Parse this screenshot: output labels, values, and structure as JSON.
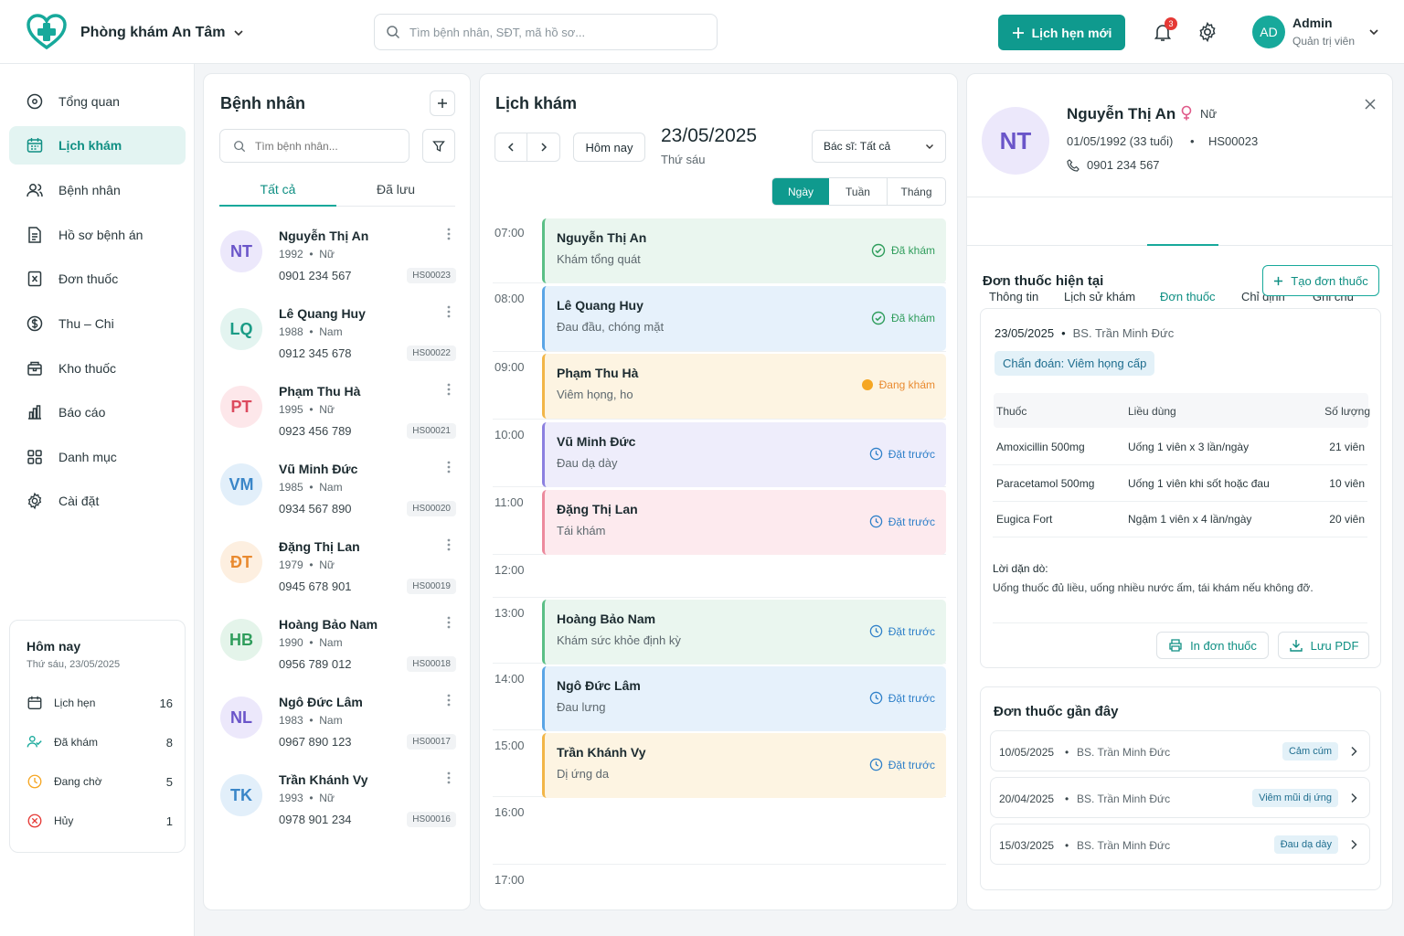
{
  "header": {
    "clinic_name": "Phòng khám An Tâm",
    "search_placeholder": "Tìm bệnh nhân, SĐT, mã hồ sơ...",
    "new_appointment": "Lịch hẹn mới",
    "notification_count": "3",
    "user_initials": "AD",
    "user_name": "Admin",
    "user_role": "Quản trị viên"
  },
  "sidebar": {
    "items": [
      {
        "label": "Tổng quan",
        "icon": "dashboard-icon"
      },
      {
        "label": "Lịch khám",
        "icon": "calendar-icon"
      },
      {
        "label": "Bệnh nhân",
        "icon": "users-icon"
      },
      {
        "label": "Hồ sơ bệnh án",
        "icon": "file-icon"
      },
      {
        "label": "Đơn thuốc",
        "icon": "prescription-icon"
      },
      {
        "label": "Thu – Chi",
        "icon": "dollar-icon"
      },
      {
        "label": "Kho thuốc",
        "icon": "box-icon"
      },
      {
        "label": "Báo cáo",
        "icon": "bar-chart-icon"
      },
      {
        "label": "Danh mục",
        "icon": "grid-icon"
      },
      {
        "label": "Cài đặt",
        "icon": "gear-icon"
      }
    ],
    "today": {
      "title": "Hôm nay",
      "date": "Thứ sáu, 23/05/2025",
      "stats": [
        {
          "label": "Lịch hẹn",
          "value": "16",
          "color": "#2a383d"
        },
        {
          "label": "Đã khám",
          "value": "8",
          "color": "#17a99b"
        },
        {
          "label": "Đang chờ",
          "value": "5",
          "color": "#f5a623"
        },
        {
          "label": "Hủy",
          "value": "1",
          "color": "#e53935"
        }
      ]
    }
  },
  "patients": {
    "title": "Bệnh nhân",
    "search_placeholder": "Tìm bệnh nhân...",
    "tabs": [
      "Tất cả",
      "Đã lưu"
    ],
    "list": [
      {
        "initials": "NT",
        "name": "Nguyễn Thị An",
        "year": "1992",
        "gender": "Nữ",
        "phone": "0901 234 567",
        "code": "HS00023",
        "bg": "#ece8fb",
        "fg": "#6a55c9"
      },
      {
        "initials": "LQ",
        "name": "Lê Quang Huy",
        "year": "1988",
        "gender": "Nam",
        "phone": "0912 345 678",
        "code": "HS00022",
        "bg": "#e3f4f0",
        "fg": "#1a9c86"
      },
      {
        "initials": "PT",
        "name": "Phạm Thu Hà",
        "year": "1995",
        "gender": "Nữ",
        "phone": "0923 456 789",
        "code": "HS00021",
        "bg": "#fde7ea",
        "fg": "#dc4a5e"
      },
      {
        "initials": "VM",
        "name": "Vũ Minh Đức",
        "year": "1985",
        "gender": "Nam",
        "phone": "0934 567 890",
        "code": "HS00020",
        "bg": "#e2effa",
        "fg": "#3a86c8"
      },
      {
        "initials": "ĐT",
        "name": "Đặng Thị Lan",
        "year": "1979",
        "gender": "Nữ",
        "phone": "0945 678 901",
        "code": "HS00019",
        "bg": "#fdefe0",
        "fg": "#e98a2f"
      },
      {
        "initials": "HB",
        "name": "Hoàng Bảo Nam",
        "year": "1990",
        "gender": "Nam",
        "phone": "0956 789 012",
        "code": "HS00018",
        "bg": "#e4f4ea",
        "fg": "#2f9d5c"
      },
      {
        "initials": "NL",
        "name": "Ngô Đức Lâm",
        "year": "1983",
        "gender": "Nam",
        "phone": "0967 890 123",
        "code": "HS00017",
        "bg": "#ece8fb",
        "fg": "#6a55c9"
      },
      {
        "initials": "TK",
        "name": "Trần Khánh Vy",
        "year": "1993",
        "gender": "Nữ",
        "phone": "0978 901 234",
        "code": "HS00016",
        "bg": "#e2effa",
        "fg": "#3a86c8"
      }
    ]
  },
  "schedule": {
    "title": "Lịch khám",
    "today_btn": "Hôm nay",
    "date": "23/05/2025",
    "weekday": "Thứ sáu",
    "doctor_filter": "Bác sĩ: Tất cả",
    "views": [
      "Ngày",
      "Tuần",
      "Tháng"
    ],
    "hours": [
      "07:00",
      "08:00",
      "09:00",
      "10:00",
      "11:00",
      "12:00",
      "13:00",
      "14:00",
      "15:00",
      "16:00",
      "17:00"
    ],
    "appointments": [
      {
        "name": "Nguyễn Thị An",
        "desc": "Khám tổng quát",
        "status": "Đã khám",
        "kind": "done",
        "bg": "#eaf6ef",
        "border": "#5bbf86",
        "color": "#2f9d5c"
      },
      {
        "name": "Lê Quang Huy",
        "desc": "Đau đầu, chóng mặt",
        "status": "Đã khám",
        "kind": "done",
        "bg": "#e6f1fb",
        "border": "#5aa5e6",
        "color": "#2f9d5c"
      },
      {
        "name": "Phạm Thu Hà",
        "desc": "Viêm họng, ho",
        "status": "Đang khám",
        "kind": "progress",
        "bg": "#fdf4e2",
        "border": "#f2b648",
        "color": "#e98a2f"
      },
      {
        "name": "Vũ Minh Đức",
        "desc": "Đau dạ dày",
        "status": "Đặt trước",
        "kind": "booked",
        "bg": "#eeedfb",
        "border": "#8c80e0",
        "color": "#2f80c9"
      },
      {
        "name": "Đặng Thị Lan",
        "desc": "Tái khám",
        "status": "Đặt trước",
        "kind": "booked",
        "bg": "#fdeaee",
        "border": "#ec8a9d",
        "color": "#2f80c9"
      },
      {
        "name": "Hoàng Bảo Nam",
        "desc": "Khám sức khỏe định kỳ",
        "status": "Đặt trước",
        "kind": "booked",
        "bg": "#eaf6ef",
        "border": "#5bbf86",
        "color": "#2f80c9"
      },
      {
        "name": "Ngô Đức Lâm",
        "desc": "Đau lưng",
        "status": "Đặt trước",
        "kind": "booked",
        "bg": "#e6f1fb",
        "border": "#5aa5e6",
        "color": "#2f80c9"
      },
      {
        "name": "Trần Khánh Vy",
        "desc": "Dị ứng da",
        "status": "Đặt trước",
        "kind": "booked",
        "bg": "#fdf4e2",
        "border": "#f2b648",
        "color": "#2f80c9"
      }
    ]
  },
  "detail": {
    "initials": "NT",
    "name": "Nguyễn Thị An",
    "gender": "Nữ",
    "dob": "01/05/1992 (33 tuổi)",
    "code": "HS00023",
    "phone": "0901 234 567",
    "tabs": [
      "Thông tin",
      "Lịch sử khám",
      "Đơn thuốc",
      "Chỉ định",
      "Ghi chú"
    ],
    "section_title": "Đơn thuốc hiện tại",
    "create_btn": "Tạo đơn thuốc",
    "rx_date": "23/05/2025",
    "rx_doctor": "BS. Trần Minh Đức",
    "diagnosis": "Chẩn đoán: Viêm họng cấp",
    "columns": [
      "Thuốc",
      "Liều dùng",
      "Số lượng"
    ],
    "meds": [
      {
        "name": "Amoxicillin 500mg",
        "dose": "Uống 1 viên x 3 lần/ngày",
        "qty": "21 viên"
      },
      {
        "name": "Paracetamol 500mg",
        "dose": "Uống 1 viên khi sốt hoặc đau",
        "qty": "10 viên"
      },
      {
        "name": "Eugica Fort",
        "dose": "Ngậm 1 viên x 4 lần/ngày",
        "qty": "20 viên"
      }
    ],
    "advice_label": "Lời dặn dò:",
    "advice": "Uống thuốc đủ liều, uống nhiều nước ấm, tái khám nếu không đỡ.",
    "print_btn": "In đơn thuốc",
    "pdf_btn": "Lưu PDF",
    "recent_title": "Đơn thuốc gần đây",
    "recent": [
      {
        "date": "10/05/2025",
        "doctor": "BS. Trần Minh Đức",
        "tag": "Cảm cúm"
      },
      {
        "date": "20/04/2025",
        "doctor": "BS. Trần Minh Đức",
        "tag": "Viêm mũi dị ứng"
      },
      {
        "date": "15/03/2025",
        "doctor": "BS. Trần Minh Đức",
        "tag": "Đau dạ dày"
      }
    ]
  }
}
